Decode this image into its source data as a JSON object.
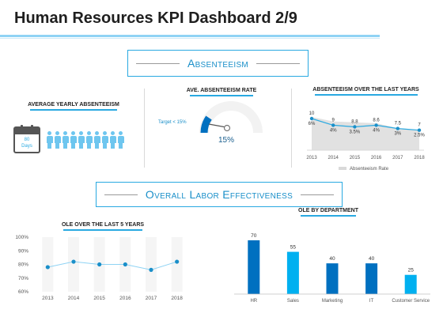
{
  "page": {
    "title": "Human Resources KPI Dashboard 2/9",
    "section1_label": "Absenteeism",
    "section2_label": "Overall Labor Effectiveness"
  },
  "avg_yearly": {
    "title": "AVERAGE YEARLY ABSENTEEISM",
    "calendar_value": "80",
    "calendar_unit": "Days",
    "people_count": 10,
    "people_color": "#6ec6ef"
  },
  "rate": {
    "title": "AVE. ABSENTEEISM RATE",
    "target_label": "Target < 15%",
    "value_label": "15%"
  },
  "colors": {
    "accent": "#29a9e1",
    "dark_blue": "#0070c0",
    "light_blue": "#00b0f0",
    "gray_area": "#d9d9d9"
  },
  "chart_data": [
    {
      "id": "absenteeism_trend",
      "type": "area",
      "title": "ABSENTEEISM OVER THE LAST  YEARS",
      "categories": [
        "2013",
        "2014",
        "2015",
        "2016",
        "2017",
        "2018"
      ],
      "series": [
        {
          "name": "Absenteeism Rate",
          "values": [
            10,
            9,
            8.8,
            8.6,
            7.5,
            7
          ]
        }
      ],
      "line_values": [
        6,
        4,
        3.5,
        4,
        3,
        2.5
      ],
      "line_labels": [
        "6%",
        "4%",
        "3.5%",
        "4%",
        "3%",
        "2.5%"
      ],
      "value_labels": [
        "10",
        "9",
        "8.8",
        "8.6",
        "7.5",
        "7"
      ],
      "legend": "bottom"
    },
    {
      "id": "ole_trend",
      "type": "line",
      "title": "OLE OVER THE LAST 5 YEARS",
      "categories": [
        "2013",
        "2014",
        "2015",
        "2016",
        "2017",
        "2018"
      ],
      "series": [
        {
          "values": [
            78,
            82,
            80,
            80,
            76,
            82
          ]
        }
      ],
      "ylim": [
        60,
        100
      ],
      "yticks": [
        "100%",
        "90%",
        "80%",
        "70%",
        "60%"
      ],
      "ytick_values": [
        100,
        90,
        80,
        70,
        60
      ]
    },
    {
      "id": "ole_department",
      "type": "bar",
      "title": "OLE BY DEPARTMENT",
      "categories": [
        "HR",
        "Sales",
        "Marketing",
        "IT",
        "Customer Service"
      ],
      "values": [
        70,
        55,
        40,
        40,
        25
      ],
      "value_labels": [
        "70",
        "55",
        "40",
        "40",
        "25"
      ],
      "bar_colors": [
        "#0070c0",
        "#00b0f0",
        "#0070c0",
        "#0070c0",
        "#00b0f0"
      ]
    }
  ]
}
